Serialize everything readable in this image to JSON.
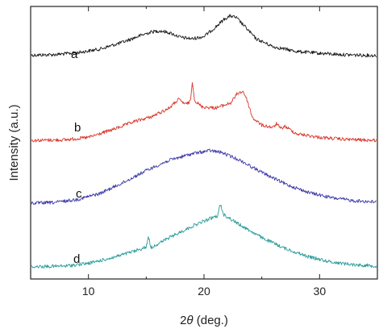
{
  "chart_data": {
    "type": "line",
    "title": "",
    "xlabel_prefix": "2",
    "xlabel_symbol": "θ",
    "xlabel_suffix": " (deg.)",
    "ylabel": "Intensity (a.u.)",
    "xlim": [
      5,
      35
    ],
    "xticks": [
      10,
      20,
      30
    ],
    "ytick_labels": false,
    "series": [
      {
        "label": "a",
        "color": "#1a1a1a",
        "points": [
          [
            5,
            0.2
          ],
          [
            7,
            0.21
          ],
          [
            9,
            0.25
          ],
          [
            11,
            0.33
          ],
          [
            13,
            0.48
          ],
          [
            14.5,
            0.62
          ],
          [
            15.5,
            0.7
          ],
          [
            16.2,
            0.72
          ],
          [
            17,
            0.68
          ],
          [
            18,
            0.58
          ],
          [
            19,
            0.55
          ],
          [
            20,
            0.6
          ],
          [
            21,
            0.8
          ],
          [
            21.8,
            0.98
          ],
          [
            22.3,
            1.04
          ],
          [
            22.8,
            1.0
          ],
          [
            23.5,
            0.82
          ],
          [
            24.5,
            0.55
          ],
          [
            26,
            0.38
          ],
          [
            28,
            0.28
          ],
          [
            30,
            0.24
          ],
          [
            32,
            0.21
          ],
          [
            35,
            0.19
          ]
        ]
      },
      {
        "label": "b",
        "color": "#d9362b",
        "points": [
          [
            5,
            0.05
          ],
          [
            8,
            0.06
          ],
          [
            10,
            0.1
          ],
          [
            12,
            0.22
          ],
          [
            14,
            0.36
          ],
          [
            15.5,
            0.44
          ],
          [
            17,
            0.58
          ],
          [
            17.8,
            0.72
          ],
          [
            18.4,
            0.64
          ],
          [
            18.8,
            0.68
          ],
          [
            19.0,
            1.0
          ],
          [
            19.2,
            0.7
          ],
          [
            19.8,
            0.6
          ],
          [
            21,
            0.58
          ],
          [
            22.3,
            0.66
          ],
          [
            22.9,
            0.82
          ],
          [
            23.4,
            0.85
          ],
          [
            23.7,
            0.72
          ],
          [
            24.2,
            0.42
          ],
          [
            25,
            0.3
          ],
          [
            26,
            0.26
          ],
          [
            26.3,
            0.33
          ],
          [
            26.6,
            0.24
          ],
          [
            27,
            0.28
          ],
          [
            28,
            0.16
          ],
          [
            30,
            0.1
          ],
          [
            32,
            0.07
          ],
          [
            35,
            0.05
          ]
        ]
      },
      {
        "label": "c",
        "color": "#3b3aa8",
        "points": [
          [
            5,
            0.04
          ],
          [
            7,
            0.05
          ],
          [
            9,
            0.1
          ],
          [
            11,
            0.2
          ],
          [
            13,
            0.38
          ],
          [
            15,
            0.58
          ],
          [
            17,
            0.75
          ],
          [
            19,
            0.86
          ],
          [
            20.5,
            0.91
          ],
          [
            21.5,
            0.88
          ],
          [
            23,
            0.76
          ],
          [
            25,
            0.55
          ],
          [
            27,
            0.36
          ],
          [
            29,
            0.22
          ],
          [
            31,
            0.13
          ],
          [
            33,
            0.08
          ],
          [
            35,
            0.06
          ]
        ]
      },
      {
        "label": "d",
        "color": "#2a9c9a",
        "points": [
          [
            5,
            0.05
          ],
          [
            8,
            0.06
          ],
          [
            10,
            0.1
          ],
          [
            12,
            0.18
          ],
          [
            14,
            0.28
          ],
          [
            15.0,
            0.34
          ],
          [
            15.2,
            0.5
          ],
          [
            15.4,
            0.33
          ],
          [
            17,
            0.48
          ],
          [
            19,
            0.65
          ],
          [
            20.5,
            0.76
          ],
          [
            21.2,
            0.8
          ],
          [
            21.4,
            0.98
          ],
          [
            21.7,
            0.82
          ],
          [
            23,
            0.68
          ],
          [
            25,
            0.48
          ],
          [
            27,
            0.32
          ],
          [
            29,
            0.2
          ],
          [
            31,
            0.12
          ],
          [
            33,
            0.08
          ],
          [
            35,
            0.06
          ]
        ]
      }
    ]
  }
}
